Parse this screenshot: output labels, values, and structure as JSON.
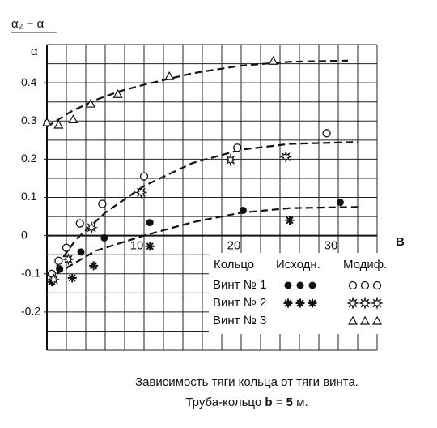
{
  "chart_data": {
    "type": "scatter",
    "y_label": "α₂ − α",
    "y_axis_symbol": "α",
    "x_label": "B",
    "xlim": [
      0,
      34
    ],
    "ylim": [
      -0.3,
      0.5
    ],
    "xticks": [
      10,
      20,
      30
    ],
    "yticks": [
      0.4,
      0.3,
      0.2,
      0.1,
      0,
      -0.1,
      -0.2
    ],
    "x_grid": [
      0,
      2,
      4,
      6,
      8,
      10,
      12,
      14,
      16,
      18,
      20,
      22,
      24,
      26,
      28,
      30,
      32,
      34
    ],
    "y_grid": [
      -0.3,
      -0.25,
      -0.2,
      -0.15,
      -0.1,
      -0.05,
      0,
      0.05,
      0.1,
      0.15,
      0.2,
      0.25,
      0.3,
      0.35,
      0.4,
      0.45,
      0.5
    ],
    "grid": true,
    "legend_header": [
      "Кольцо",
      "Исходн.",
      "Модиф."
    ],
    "legend_rows": [
      "Винт № 1",
      "Винт № 2",
      "Винт № 3"
    ],
    "series": [
      {
        "row": 0,
        "column": 1,
        "marker": "filled-circle",
        "color": "#111111",
        "x": [
          1.3,
          3.5,
          5.9,
          10.6,
          20.2,
          30.2
        ],
        "values": [
          -0.087,
          -0.043,
          -0.006,
          0.034,
          0.066,
          0.087
        ]
      },
      {
        "row": 0,
        "column": 2,
        "marker": "open-circle",
        "color": "#111111",
        "x": [
          0.5,
          1.2,
          2,
          3.4,
          5.7,
          10,
          19.6,
          28.8
        ],
        "values": [
          -0.1,
          -0.066,
          -0.032,
          0.032,
          0.083,
          0.155,
          0.23,
          0.268
        ]
      },
      {
        "row": 1,
        "column": 1,
        "marker": "filled-star",
        "color": "#111111",
        "x": [
          0.5,
          2.6,
          4.8,
          10.6,
          25
        ],
        "values": [
          -0.121,
          -0.111,
          -0.079,
          -0.028,
          0.04
        ]
      },
      {
        "row": 1,
        "column": 2,
        "marker": "open-star",
        "color": "#111111",
        "x": [
          0.7,
          2.2,
          4.6,
          9.7,
          18.9,
          24.6
        ],
        "values": [
          -0.115,
          -0.062,
          0.021,
          0.113,
          0.198,
          0.206
        ]
      },
      {
        "row": 2,
        "column": 2,
        "marker": "open-triangle",
        "color": "#111111",
        "x": [
          0,
          1.2,
          2.7,
          4.5,
          7.3,
          12.6,
          23.3
        ],
        "values": [
          0.296,
          0.29,
          0.304,
          0.345,
          0.37,
          0.417,
          0.457
        ]
      }
    ],
    "trends": [
      {
        "x": [
          0,
          2.5,
          5,
          7.5,
          10,
          15,
          20,
          25,
          31
        ],
        "values": [
          0.285,
          0.325,
          0.355,
          0.378,
          0.395,
          0.425,
          0.445,
          0.455,
          0.458
        ]
      },
      {
        "x": [
          1,
          3,
          6,
          10,
          15,
          20,
          25,
          32
        ],
        "values": [
          -0.08,
          -0.01,
          0.06,
          0.13,
          0.19,
          0.225,
          0.24,
          0.245
        ]
      },
      {
        "x": [
          1,
          5,
          10,
          15,
          20,
          25,
          32
        ],
        "values": [
          -0.1,
          -0.04,
          0,
          0.035,
          0.06,
          0.072,
          0.075
        ]
      }
    ],
    "caption": [
      "Зависимость тяги кольца от тяги винта.",
      [
        "Труба-кольцо ",
        "b",
        " = ",
        "5",
        " м."
      ]
    ]
  }
}
